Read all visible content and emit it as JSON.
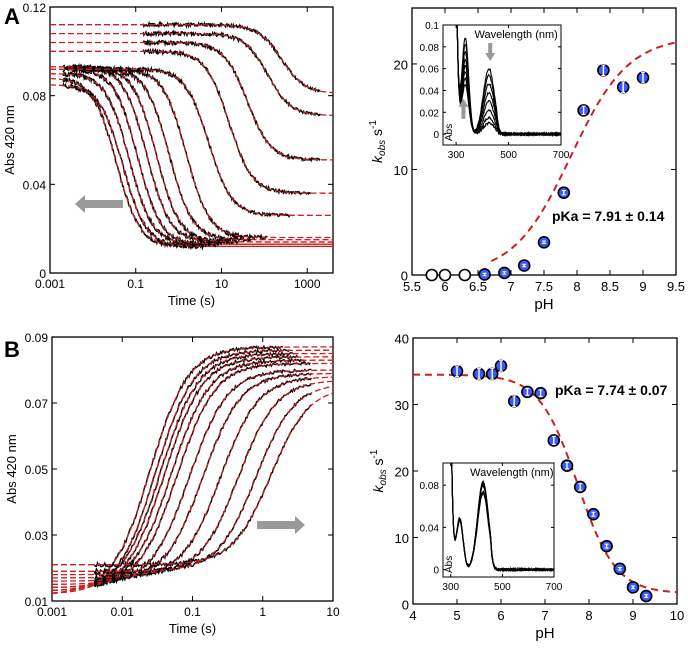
{
  "chart_data": [
    {
      "panel": "A",
      "type": "line",
      "subtype": "kinetic-traces",
      "xlabel": "Time (s)",
      "ylabel": "Abs 420 nm",
      "xscale": "log",
      "xlim": [
        0.001,
        4000
      ],
      "ylim": [
        0,
        0.12
      ],
      "xticks": [
        "0.001",
        "0.1",
        "10",
        "1000"
      ],
      "xtick_values": [
        0.001,
        0.1,
        10,
        1000
      ],
      "yticks": [
        "0",
        "0.04",
        "0.08",
        "0.12"
      ],
      "ytick_values": [
        0,
        0.04,
        0.08,
        0.12
      ],
      "arrow": "left",
      "traces": [
        {
          "t0": 0.002,
          "a0": 0.088,
          "ainf": 0.012,
          "thalf": 0.035
        },
        {
          "t0": 0.002,
          "a0": 0.085,
          "ainf": 0.012,
          "thalf": 0.05
        },
        {
          "t0": 0.002,
          "a0": 0.09,
          "ainf": 0.013,
          "thalf": 0.07
        },
        {
          "t0": 0.002,
          "a0": 0.092,
          "ainf": 0.013,
          "thalf": 0.11
        },
        {
          "t0": 0.002,
          "a0": 0.093,
          "ainf": 0.014,
          "thalf": 0.18
        },
        {
          "t0": 0.003,
          "a0": 0.093,
          "ainf": 0.014,
          "thalf": 0.3
        },
        {
          "t0": 0.005,
          "a0": 0.092,
          "ainf": 0.015,
          "thalf": 0.6
        },
        {
          "t0": 0.01,
          "a0": 0.092,
          "ainf": 0.016,
          "thalf": 1.5
        },
        {
          "t0": 0.02,
          "a0": 0.092,
          "ainf": 0.026,
          "thalf": 5
        },
        {
          "t0": 0.15,
          "a0": 0.1,
          "ainf": 0.036,
          "thalf": 15
        },
        {
          "t0": 0.15,
          "a0": 0.104,
          "ainf": 0.051,
          "thalf": 40
        },
        {
          "t0": 0.15,
          "a0": 0.108,
          "ainf": 0.071,
          "thalf": 120
        },
        {
          "t0": 0.15,
          "a0": 0.112,
          "ainf": 0.081,
          "thalf": 250
        }
      ]
    },
    {
      "panel": "A",
      "type": "scatter",
      "xlabel": "pH",
      "ylabel": "k",
      "ylabel_sub": "obs",
      "ylabel_unit": "s",
      "ylabel_sup": "-1",
      "xlim": [
        5.5,
        9.5
      ],
      "ylim": [
        0,
        25.3
      ],
      "xticks": [
        "5.5",
        "6",
        "6.5",
        "7",
        "7.5",
        "8",
        "8.5",
        "9",
        "9.5"
      ],
      "yticks": [
        "0",
        "10",
        "20"
      ],
      "ytick_values": [
        0,
        10,
        20
      ],
      "x": [
        5.8,
        6.0,
        6.3,
        6.6,
        6.9,
        7.2,
        7.5,
        7.8,
        8.1,
        8.4,
        8.7,
        9.0
      ],
      "y": [
        0,
        0,
        0,
        0.05,
        0.2,
        0.9,
        3.1,
        7.8,
        15.6,
        19.4,
        17.8,
        18.7
      ],
      "err": [
        0,
        0,
        0,
        0.1,
        0.1,
        0.1,
        0.1,
        0.2,
        0.4,
        0.5,
        0.5,
        0.5
      ],
      "fit": {
        "kind": "increasing",
        "pKa": 7.91,
        "kmin": 0,
        "kmax": 22.6,
        "from": 6.7
      },
      "annotation": "pKa = 7.91 ± 0.14",
      "inset": {
        "xlabel": "Wavelength (nm)",
        "ylabel": "Abs",
        "xlim": [
          250,
          700
        ],
        "ylim": [
          -0.01,
          0.1
        ],
        "xticks": [
          "300",
          "500",
          "700"
        ],
        "yticks": [
          "0",
          "0.02",
          "0.04",
          "0.06",
          "0.08",
          "0.1"
        ],
        "ytick_values": [
          0,
          0.02,
          0.04,
          0.06,
          0.08,
          0.1
        ],
        "peak420": [
          0.01,
          0.015,
          0.022,
          0.03,
          0.038,
          0.046,
          0.054,
          0.06
        ],
        "peak340": [
          0.088,
          0.082,
          0.075,
          0.068,
          0.062,
          0.056,
          0.05,
          0.045
        ]
      }
    },
    {
      "panel": "B",
      "type": "line",
      "subtype": "kinetic-traces",
      "xlabel": "Time (s)",
      "ylabel": "Abs 420 nm",
      "xscale": "log",
      "xlim": [
        0.001,
        10
      ],
      "ylim": [
        0.01,
        0.09
      ],
      "xticks": [
        "0.001",
        "0.01",
        "0.1",
        "1",
        "10"
      ],
      "xtick_values": [
        0.001,
        0.01,
        0.1,
        1,
        10
      ],
      "yticks": [
        "0.01",
        "0.03",
        "0.05",
        "0.07",
        "0.09"
      ],
      "ytick_values": [
        0.01,
        0.03,
        0.05,
        0.07,
        0.09
      ],
      "arrow": "right",
      "traces": [
        {
          "a0": 0.012,
          "ainf": 0.087,
          "thalf": 0.025
        },
        {
          "a0": 0.012,
          "ainf": 0.086,
          "thalf": 0.03
        },
        {
          "a0": 0.013,
          "ainf": 0.085,
          "thalf": 0.035
        },
        {
          "a0": 0.013,
          "ainf": 0.084,
          "thalf": 0.04
        },
        {
          "a0": 0.014,
          "ainf": 0.083,
          "thalf": 0.05
        },
        {
          "a0": 0.014,
          "ainf": 0.082,
          "thalf": 0.06
        },
        {
          "a0": 0.015,
          "ainf": 0.08,
          "thalf": 0.09
        },
        {
          "a0": 0.016,
          "ainf": 0.079,
          "thalf": 0.14
        },
        {
          "a0": 0.017,
          "ainf": 0.078,
          "thalf": 0.25
        },
        {
          "a0": 0.018,
          "ainf": 0.077,
          "thalf": 0.45
        },
        {
          "a0": 0.019,
          "ainf": 0.076,
          "thalf": 0.8
        },
        {
          "a0": 0.021,
          "ainf": 0.075,
          "thalf": 1.3
        }
      ]
    },
    {
      "panel": "B",
      "type": "scatter",
      "xlabel": "pH",
      "ylabel": "k",
      "ylabel_sub": "obs",
      "ylabel_unit": "s",
      "ylabel_sup": "-1",
      "xlim": [
        4,
        10
      ],
      "ylim": [
        0,
        40
      ],
      "xticks": [
        "4",
        "5",
        "6",
        "7",
        "8",
        "9",
        "10"
      ],
      "yticks": [
        "0",
        "10",
        "20",
        "30",
        "40"
      ],
      "ytick_values": [
        0,
        10,
        20,
        30,
        40
      ],
      "x": [
        5.0,
        5.5,
        5.8,
        6.0,
        6.3,
        6.6,
        6.9,
        7.2,
        7.5,
        7.8,
        8.1,
        8.4,
        8.7,
        9.0,
        9.3
      ],
      "y": [
        35,
        34.6,
        34.6,
        35.8,
        30.5,
        31.9,
        31.7,
        24.6,
        20.8,
        17.6,
        13.5,
        8.7,
        5.3,
        2.5,
        1.2
      ],
      "err": [
        0.8,
        0.8,
        0.8,
        0.8,
        0.8,
        0.5,
        0.5,
        0.6,
        0.5,
        0.5,
        0.3,
        0.3,
        0.2,
        0.2,
        0.2
      ],
      "fit": {
        "kind": "decreasing",
        "pKa": 7.74,
        "kmin": 1.6,
        "kmax": 34.5,
        "from": 4
      },
      "annotation": "pKa = 7.74 ± 0.07",
      "inset": {
        "xlabel": "Wavelength (nm)",
        "ylabel": "Abs",
        "xlim": [
          270,
          700
        ],
        "ylim": [
          -0.007,
          0.101
        ],
        "xticks": [
          "300",
          "500",
          "700"
        ],
        "yticks": [
          "0",
          "0.04",
          "0.08"
        ],
        "ytick_values": [
          0,
          0.04,
          0.08
        ],
        "peak420": [
          0.072,
          0.074,
          0.079,
          0.081,
          0.082,
          0.083
        ],
        "peak340": [
          0.046,
          0.046,
          0.047,
          0.047,
          0.048,
          0.048
        ]
      }
    }
  ],
  "labels": {
    "panel_a": "A",
    "panel_b": "B"
  },
  "colors": {
    "fit": "#cc1f1f",
    "trace": "#000000",
    "arrow": "#999999",
    "point_fill": "#3b5bff"
  }
}
